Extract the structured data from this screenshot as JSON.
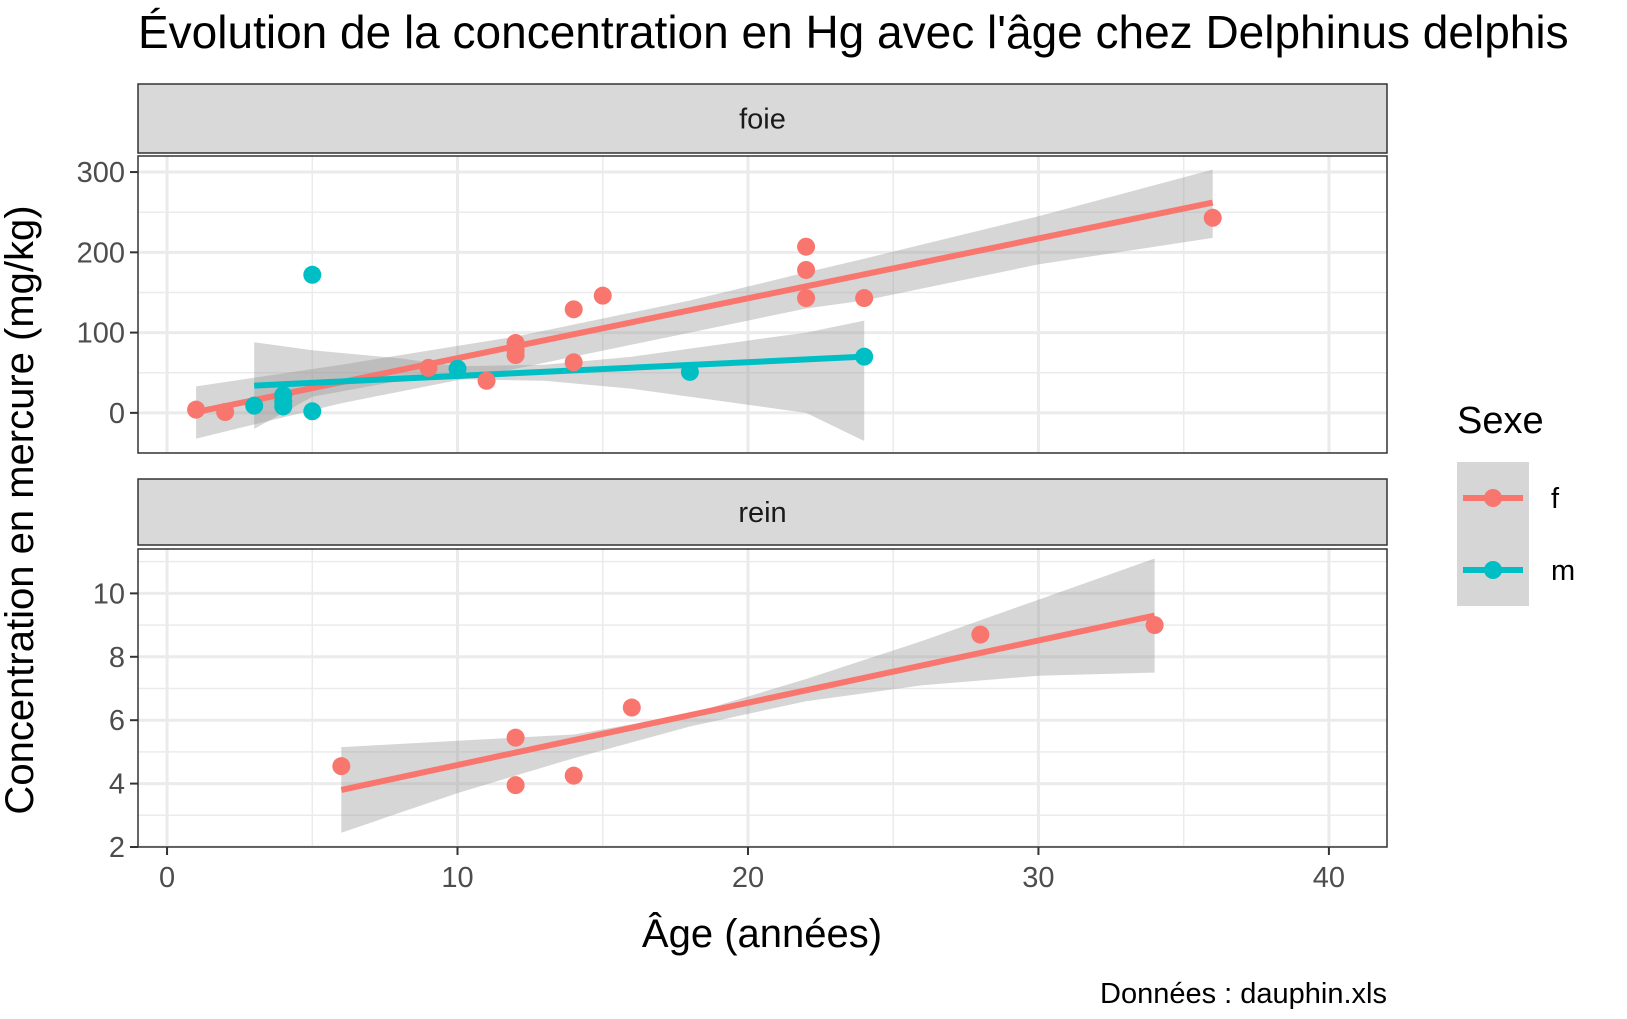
{
  "title": "Évolution de la concentration en Hg avec l'âge chez Delphinus delphis",
  "caption": "Données : dauphin.xls",
  "colors": {
    "f": "#F8766D",
    "m": "#00BFC4",
    "ribbon": "#999999",
    "strip_bg": "#D9D9D9",
    "grid": "#EBEBEB"
  },
  "legend": {
    "title": "Sexe",
    "items": [
      {
        "key": "f",
        "label": "f"
      },
      {
        "key": "m",
        "label": "m"
      }
    ]
  },
  "chart_data": {
    "type": "scatter",
    "xlabel": "Âge (années)",
    "ylabel": "Concentration en mercure (mg/kg)",
    "xlim": [
      -1,
      42
    ],
    "xticks": [
      0,
      10,
      20,
      30,
      40
    ],
    "grid": true,
    "legend_position": "right",
    "facets": [
      {
        "label": "foie",
        "ylim": [
          -50,
          320
        ],
        "yticks": [
          0,
          100,
          200,
          300
        ],
        "series": [
          {
            "name": "f",
            "points": [
              [
                1,
                4
              ],
              [
                2,
                1
              ],
              [
                9,
                56
              ],
              [
                11,
                40
              ],
              [
                12,
                72
              ],
              [
                12,
                78
              ],
              [
                12,
                87
              ],
              [
                14,
                63
              ],
              [
                14,
                129
              ],
              [
                15,
                146
              ],
              [
                22,
                143
              ],
              [
                22,
                178
              ],
              [
                22,
                207
              ],
              [
                24,
                143
              ],
              [
                36,
                243
              ]
            ],
            "fit": [
              [
                1,
                1
              ],
              [
                36,
                262
              ]
            ],
            "ribbon": {
              "x": [
                1,
                6,
                12,
                18,
                22,
                24,
                30,
                36
              ],
              "lo": [
                -32,
                12,
                55,
                100,
                130,
                140,
                185,
                218
              ],
              "hi": [
                33,
                60,
                95,
                140,
                175,
                192,
                245,
                303
              ]
            }
          },
          {
            "name": "m",
            "points": [
              [
                3,
                9
              ],
              [
                4,
                8
              ],
              [
                4,
                14
              ],
              [
                4,
                22
              ],
              [
                5,
                2
              ],
              [
                5,
                172
              ],
              [
                10,
                55
              ],
              [
                18,
                51
              ],
              [
                24,
                70
              ]
            ],
            "fit": [
              [
                3,
                34
              ],
              [
                24,
                70
              ]
            ],
            "ribbon": {
              "x": [
                3,
                5,
                8,
                10,
                13,
                16,
                19,
                22,
                24
              ],
              "lo": [
                -20,
                20,
                40,
                42,
                40,
                30,
                15,
                0,
                -35
              ],
              "hi": [
                88,
                78,
                68,
                58,
                60,
                70,
                85,
                100,
                115
              ]
            }
          }
        ]
      },
      {
        "label": "rein",
        "ylim": [
          2,
          11.4
        ],
        "yticks": [
          2,
          4,
          6,
          8,
          10
        ],
        "series": [
          {
            "name": "f",
            "points": [
              [
                6,
                4.55
              ],
              [
                12,
                3.95
              ],
              [
                12,
                5.45
              ],
              [
                14,
                4.25
              ],
              [
                16,
                6.4
              ],
              [
                28,
                8.7
              ],
              [
                34,
                9.0
              ]
            ],
            "fit": [
              [
                6,
                3.8
              ],
              [
                34,
                9.3
              ]
            ],
            "ribbon": {
              "x": [
                6,
                10,
                14,
                18,
                22,
                26,
                30,
                34
              ],
              "lo": [
                2.45,
                3.7,
                4.8,
                5.8,
                6.6,
                7.1,
                7.4,
                7.5
              ],
              "hi": [
                5.15,
                5.35,
                5.55,
                6.2,
                7.3,
                8.5,
                9.8,
                11.1
              ]
            }
          }
        ]
      }
    ]
  }
}
